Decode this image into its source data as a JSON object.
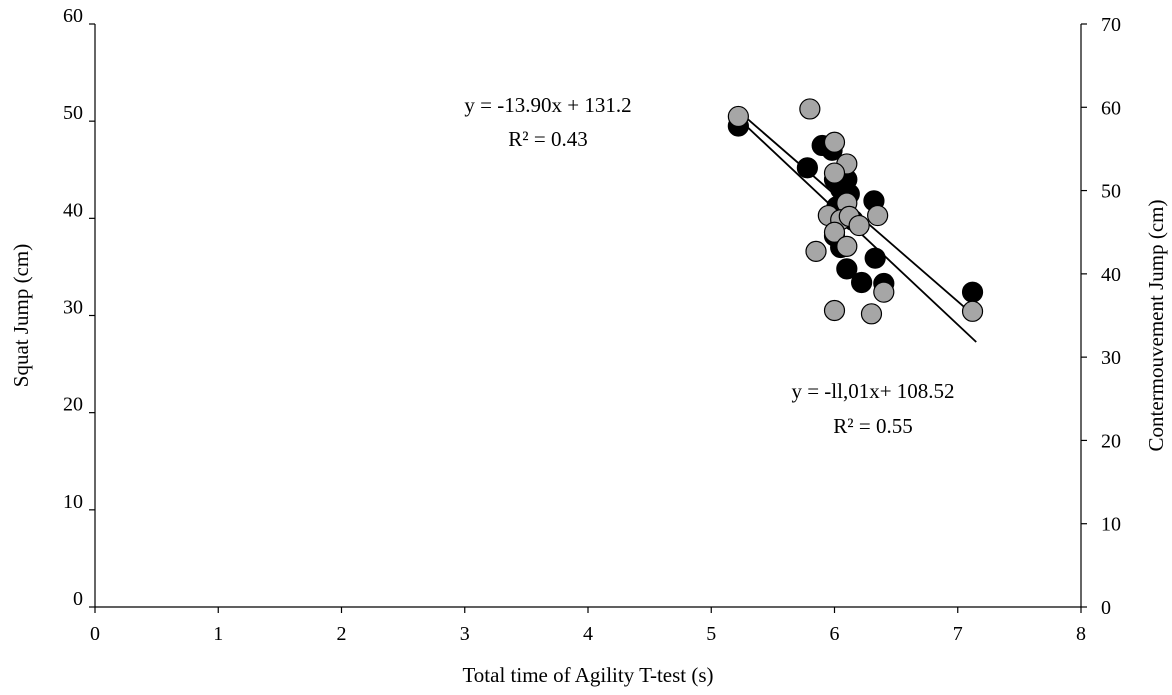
{
  "chart_data": {
    "type": "scatter",
    "xlabel": "Total time of Agility T-test (s)",
    "ylabel_left": "Squat Jump (cm)",
    "ylabel_right": "Contermouvement Jump (cm)",
    "xlim": [
      0,
      8
    ],
    "ylim_left": [
      0,
      60
    ],
    "ylim_right": [
      0,
      70
    ],
    "x_ticks": [
      "0",
      "1",
      "2",
      "3",
      "4",
      "5",
      "6",
      "7",
      "8"
    ],
    "y_left_ticks": [
      "0",
      "10",
      "20",
      "30",
      "40",
      "50",
      "60"
    ],
    "y_right_ticks": [
      "0",
      "10",
      "20",
      "30",
      "40",
      "50",
      "60",
      "70"
    ],
    "grid": false,
    "legend": "none",
    "series": [
      {
        "axis": "left",
        "color": "#000000",
        "points": [
          [
            5.22,
            49.5
          ],
          [
            5.78,
            45.2
          ],
          [
            5.9,
            47.5
          ],
          [
            5.98,
            47.0
          ],
          [
            6.0,
            44.0
          ],
          [
            6.05,
            43.0
          ],
          [
            6.1,
            44.0
          ],
          [
            6.12,
            42.5
          ],
          [
            6.02,
            41.2
          ],
          [
            6.08,
            40.2
          ],
          [
            6.15,
            39.8
          ],
          [
            6.32,
            41.8
          ],
          [
            6.0,
            38.2
          ],
          [
            6.05,
            37.0
          ],
          [
            6.33,
            35.9
          ],
          [
            6.1,
            34.8
          ],
          [
            6.22,
            33.4
          ],
          [
            6.4,
            33.3
          ],
          [
            7.12,
            32.4
          ]
        ],
        "trendline": {
          "slope": -11.01,
          "intercept": 108.52
        },
        "equation": "y = -ll,01x+ 108.52",
        "r2": "R² = 0.55"
      },
      {
        "axis": "right",
        "color": "#a6a6a6",
        "points": [
          [
            5.22,
            58.9
          ],
          [
            5.8,
            59.8
          ],
          [
            6.0,
            55.8
          ],
          [
            6.1,
            53.2
          ],
          [
            6.0,
            52.1
          ],
          [
            6.1,
            48.5
          ],
          [
            5.95,
            47.0
          ],
          [
            6.05,
            46.5
          ],
          [
            6.12,
            46.9
          ],
          [
            6.2,
            45.8
          ],
          [
            6.35,
            47.0
          ],
          [
            6.0,
            45.0
          ],
          [
            5.85,
            42.7
          ],
          [
            6.1,
            43.3
          ],
          [
            6.4,
            37.8
          ],
          [
            6.0,
            35.6
          ],
          [
            6.3,
            35.2
          ],
          [
            7.12,
            35.5
          ]
        ],
        "trendline": {
          "slope": -13.9,
          "intercept": 131.2
        },
        "equation": "y = -13.90x + 131.2",
        "r2": "R² = 0.43"
      }
    ]
  }
}
